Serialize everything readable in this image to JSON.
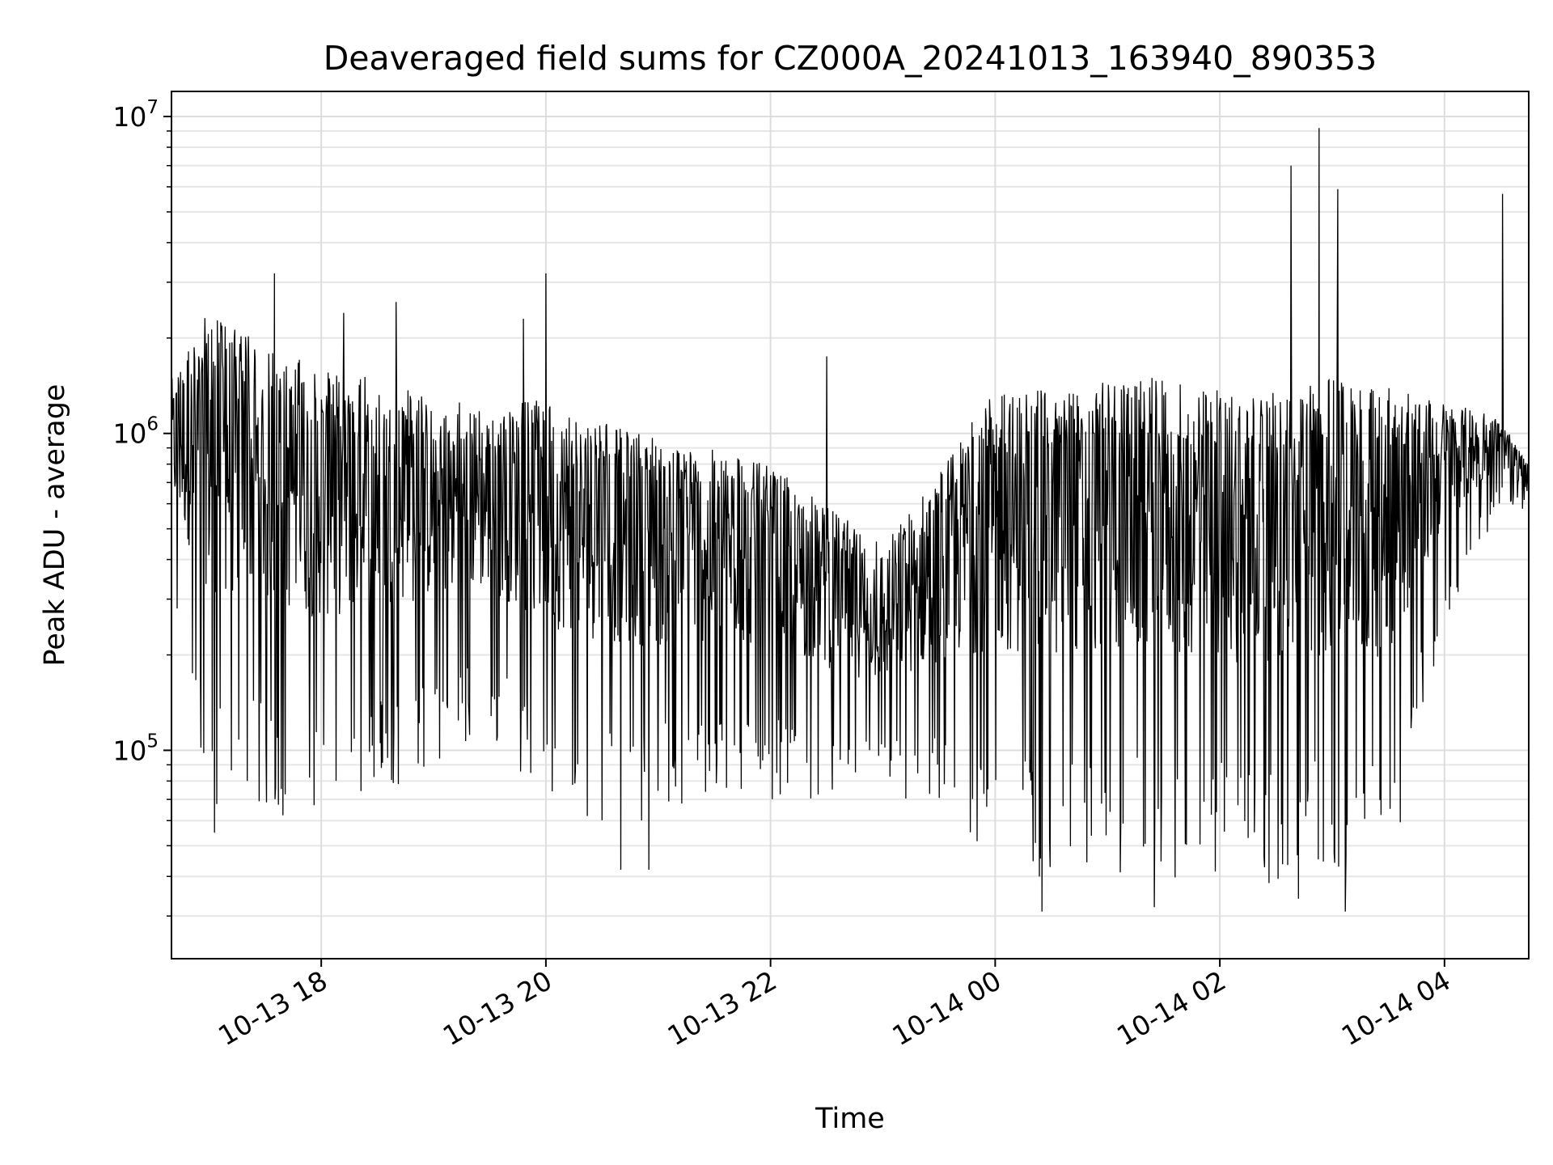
{
  "chart_data": {
    "type": "line",
    "title": "Deaveraged field sums for CZ000A_20241013_163940_890353",
    "xlabel": "Time",
    "ylabel": "Peak ADU - average",
    "yscale": "log",
    "ylim": [
      22000,
      12000000
    ],
    "xlim": [
      "2024-10-13T16:40:00",
      "2024-10-14T04:45:00"
    ],
    "grid": true,
    "x_ticks": [
      {
        "value": "2024-10-13T18:00:00",
        "label": "10-13 18"
      },
      {
        "value": "2024-10-13T20:00:00",
        "label": "10-13 20"
      },
      {
        "value": "2024-10-13T22:00:00",
        "label": "10-13 22"
      },
      {
        "value": "2024-10-14T00:00:00",
        "label": "10-14 00"
      },
      {
        "value": "2024-10-14T02:00:00",
        "label": "10-14 02"
      },
      {
        "value": "2024-10-14T04:00:00",
        "label": "10-14 04"
      }
    ],
    "y_ticks": [
      {
        "value": 100000,
        "base": "10",
        "exp": "5"
      },
      {
        "value": 1000000,
        "base": "10",
        "exp": "6"
      },
      {
        "value": 10000000,
        "base": "10",
        "exp": "7"
      }
    ],
    "series": [
      {
        "color": "#000000",
        "envelope": [
          {
            "t": "2024-10-13T16:40:00",
            "low": 280000,
            "high": 1500000
          },
          {
            "t": "2024-10-13T17:00:00",
            "low": 60000,
            "high": 2500000
          },
          {
            "t": "2024-10-13T17:30:00",
            "low": 60000,
            "high": 1900000
          },
          {
            "t": "2024-10-13T18:00:00",
            "low": 60000,
            "high": 1600000
          },
          {
            "t": "2024-10-13T18:30:00",
            "low": 70000,
            "high": 1500000
          },
          {
            "t": "2024-10-13T19:00:00",
            "low": 90000,
            "high": 1300000
          },
          {
            "t": "2024-10-13T19:30:00",
            "low": 110000,
            "high": 1200000
          },
          {
            "t": "2024-10-13T20:00:00",
            "low": 65000,
            "high": 1300000
          },
          {
            "t": "2024-10-13T20:30:00",
            "low": 60000,
            "high": 1100000
          },
          {
            "t": "2024-10-13T21:00:00",
            "low": 60000,
            "high": 1000000
          },
          {
            "t": "2024-10-13T21:30:00",
            "low": 70000,
            "high": 900000
          },
          {
            "t": "2024-10-13T22:00:00",
            "low": 70000,
            "high": 800000
          },
          {
            "t": "2024-10-13T22:30:00",
            "low": 70000,
            "high": 600000
          },
          {
            "t": "2024-10-13T23:00:00",
            "low": 70000,
            "high": 450000
          },
          {
            "t": "2024-10-13T23:30:00",
            "low": 60000,
            "high": 800000
          },
          {
            "t": "2024-10-14T00:00:00",
            "low": 45000,
            "high": 1400000
          },
          {
            "t": "2024-10-14T00:30:00",
            "low": 38000,
            "high": 1400000
          },
          {
            "t": "2024-10-14T01:00:00",
            "low": 40000,
            "high": 1500000
          },
          {
            "t": "2024-10-14T01:30:00",
            "low": 38000,
            "high": 1500000
          },
          {
            "t": "2024-10-14T02:00:00",
            "low": 38000,
            "high": 1400000
          },
          {
            "t": "2024-10-14T02:30:00",
            "low": 38000,
            "high": 1400000
          },
          {
            "t": "2024-10-14T03:00:00",
            "low": 38000,
            "high": 1500000
          },
          {
            "t": "2024-10-14T03:30:00",
            "low": 40000,
            "high": 1400000
          },
          {
            "t": "2024-10-14T04:00:00",
            "low": 250000,
            "high": 1300000
          },
          {
            "t": "2024-10-14T04:30:00",
            "low": 600000,
            "high": 1100000
          },
          {
            "t": "2024-10-14T04:45:00",
            "low": 550000,
            "high": 800000
          }
        ],
        "peaks": [
          {
            "t": "2024-10-13T17:35:00",
            "value": 3200000
          },
          {
            "t": "2024-10-13T18:12:00",
            "value": 2400000
          },
          {
            "t": "2024-10-13T18:40:00",
            "value": 2600000
          },
          {
            "t": "2024-10-13T19:48:00",
            "value": 2300000
          },
          {
            "t": "2024-10-13T20:00:00",
            "value": 3200000
          },
          {
            "t": "2024-10-13T22:30:00",
            "value": 1750000
          },
          {
            "t": "2024-10-14T02:38:00",
            "value": 7000000
          },
          {
            "t": "2024-10-14T02:53:00",
            "value": 9200000
          },
          {
            "t": "2024-10-14T03:03:00",
            "value": 5900000
          },
          {
            "t": "2024-10-14T04:31:00",
            "value": 5700000
          }
        ],
        "dips": [
          {
            "t": "2024-10-13T17:03:00",
            "value": 55000
          },
          {
            "t": "2024-10-13T20:40:00",
            "value": 42000
          },
          {
            "t": "2024-10-13T20:55:00",
            "value": 42000
          },
          {
            "t": "2024-10-14T00:25:00",
            "value": 31000
          },
          {
            "t": "2024-10-14T01:25:00",
            "value": 32000
          },
          {
            "t": "2024-10-14T02:42:00",
            "value": 34000
          },
          {
            "t": "2024-10-14T03:07:00",
            "value": 31000
          }
        ]
      }
    ]
  }
}
